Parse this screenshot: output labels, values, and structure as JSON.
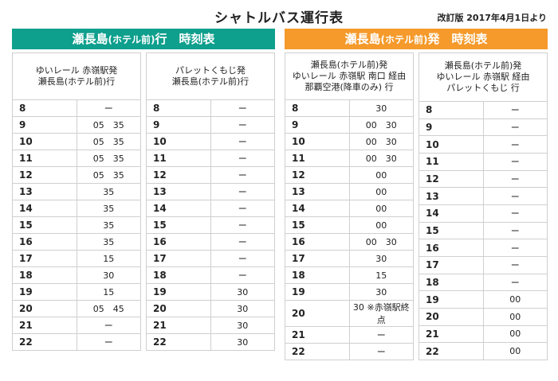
{
  "title": "シャトルバス運行表",
  "revision": "改訂版 2017年4月1日より",
  "groups": [
    {
      "banner": {
        "main": "瀬長島",
        "sub": "(ホテル前)",
        "rest": "行　時刻表"
      },
      "tables": [
        {
          "header": [
            "ゆいレール 赤嶺駅発",
            "瀬長島(ホテル前)行"
          ],
          "rows": [
            {
              "hour": "8",
              "times": "ー"
            },
            {
              "hour": "9",
              "times": "05　35"
            },
            {
              "hour": "10",
              "times": "05　35"
            },
            {
              "hour": "11",
              "times": "05　35"
            },
            {
              "hour": "12",
              "times": "05　35"
            },
            {
              "hour": "13",
              "times": "35"
            },
            {
              "hour": "14",
              "times": "35"
            },
            {
              "hour": "15",
              "times": "35"
            },
            {
              "hour": "16",
              "times": "35"
            },
            {
              "hour": "17",
              "times": "15"
            },
            {
              "hour": "18",
              "times": "30"
            },
            {
              "hour": "19",
              "times": "15"
            },
            {
              "hour": "20",
              "times": "05　45"
            },
            {
              "hour": "21",
              "times": "ー"
            },
            {
              "hour": "22",
              "times": "ー"
            }
          ]
        },
        {
          "header": [
            "パレットくもじ発",
            "瀬長島(ホテル前)行"
          ],
          "rows": [
            {
              "hour": "8",
              "times": "ー"
            },
            {
              "hour": "9",
              "times": "ー"
            },
            {
              "hour": "10",
              "times": "ー"
            },
            {
              "hour": "11",
              "times": "ー"
            },
            {
              "hour": "12",
              "times": "ー"
            },
            {
              "hour": "13",
              "times": "ー"
            },
            {
              "hour": "14",
              "times": "ー"
            },
            {
              "hour": "15",
              "times": "ー"
            },
            {
              "hour": "16",
              "times": "ー"
            },
            {
              "hour": "17",
              "times": "ー"
            },
            {
              "hour": "18",
              "times": "ー"
            },
            {
              "hour": "19",
              "times": "30"
            },
            {
              "hour": "20",
              "times": "30"
            },
            {
              "hour": "21",
              "times": "30"
            },
            {
              "hour": "22",
              "times": "30"
            }
          ]
        }
      ]
    },
    {
      "banner": {
        "main": "瀬長島",
        "sub": "(ホテル前)",
        "rest": "発　時刻表"
      },
      "tables": [
        {
          "header": [
            "瀬長島(ホテル前)発",
            "ゆいレール 赤嶺駅 南口 経由",
            "那覇空港(降車のみ) 行"
          ],
          "rows": [
            {
              "hour": "8",
              "times": "30"
            },
            {
              "hour": "9",
              "times": "00　30"
            },
            {
              "hour": "10",
              "times": "00　30"
            },
            {
              "hour": "11",
              "times": "00　30"
            },
            {
              "hour": "12",
              "times": "00"
            },
            {
              "hour": "13",
              "times": "00"
            },
            {
              "hour": "14",
              "times": "00"
            },
            {
              "hour": "15",
              "times": "00"
            },
            {
              "hour": "16",
              "times": "00　30"
            },
            {
              "hour": "17",
              "times": "30"
            },
            {
              "hour": "18",
              "times": "15"
            },
            {
              "hour": "19",
              "times": "30"
            },
            {
              "hour": "20",
              "times": "30 ※赤嶺駅終点"
            },
            {
              "hour": "21",
              "times": "ー"
            },
            {
              "hour": "22",
              "times": "ー"
            }
          ]
        },
        {
          "header": [
            "瀬長島(ホテル前)発",
            "ゆいレール 赤嶺駅 経由",
            "パレットくもじ 行"
          ],
          "rows": [
            {
              "hour": "8",
              "times": "ー"
            },
            {
              "hour": "9",
              "times": "ー"
            },
            {
              "hour": "10",
              "times": "ー"
            },
            {
              "hour": "11",
              "times": "ー"
            },
            {
              "hour": "12",
              "times": "ー"
            },
            {
              "hour": "13",
              "times": "ー"
            },
            {
              "hour": "14",
              "times": "ー"
            },
            {
              "hour": "15",
              "times": "ー"
            },
            {
              "hour": "16",
              "times": "ー"
            },
            {
              "hour": "17",
              "times": "ー"
            },
            {
              "hour": "18",
              "times": "ー"
            },
            {
              "hour": "19",
              "times": "00"
            },
            {
              "hour": "20",
              "times": "00"
            },
            {
              "hour": "21",
              "times": "00"
            },
            {
              "hour": "22",
              "times": "00"
            }
          ]
        }
      ]
    }
  ]
}
